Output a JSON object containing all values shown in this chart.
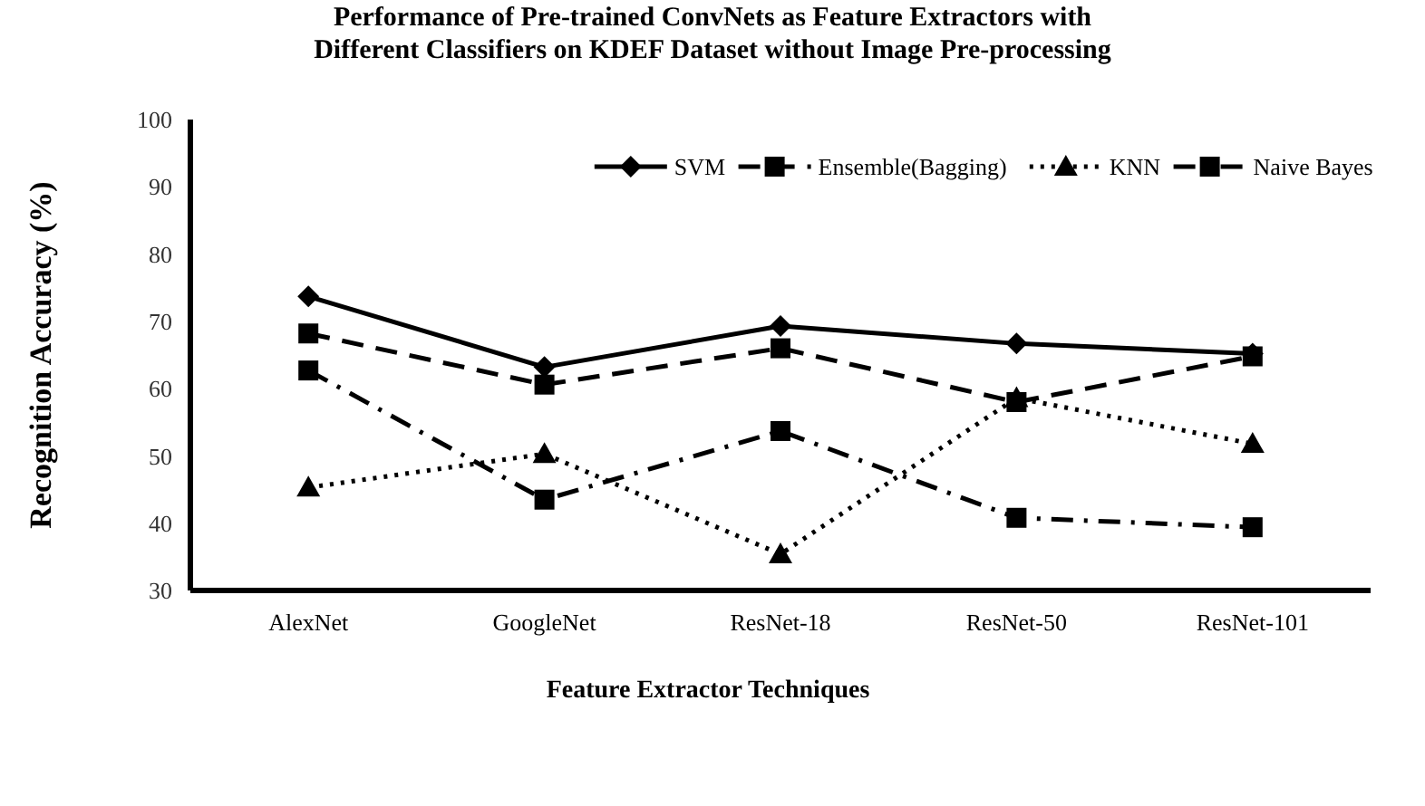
{
  "chart_data": {
    "type": "line",
    "title": "Performance of Pre-trained ConvNets as Feature Extractors with\nDifferent Classifiers on KDEF Dataset without Image Pre-processing",
    "xlabel": "Feature Extractor Techniques",
    "ylabel": "Recognition Accuracy (%)",
    "categories": [
      "AlexNet",
      "GoogleNet",
      "ResNet-18",
      "ResNet-50",
      "ResNet-101"
    ],
    "series": [
      {
        "name": "SVM",
        "color": "#000000",
        "marker": "diamond",
        "line_style": "solid",
        "values": [
          73.7,
          63.2,
          69.3,
          66.7,
          65.2
        ]
      },
      {
        "name": "Ensemble(Bagging)",
        "color": "#000000",
        "marker": "square",
        "line_style": "dashed",
        "values": [
          68.2,
          60.6,
          66.0,
          58.0,
          64.8
        ]
      },
      {
        "name": "KNN",
        "color": "#000000",
        "marker": "triangle",
        "line_style": "dotted",
        "values": [
          45.3,
          50.3,
          35.4,
          58.6,
          51.8
        ]
      },
      {
        "name": "Naive Bayes",
        "color": "#000000",
        "marker": "square",
        "line_style": "dashdot",
        "values": [
          62.7,
          43.5,
          53.7,
          40.8,
          39.4
        ]
      }
    ],
    "ylim": [
      30,
      100
    ],
    "yticks": [
      30,
      40,
      50,
      60,
      70,
      80,
      90,
      100
    ],
    "grid": false,
    "legend": "top"
  }
}
